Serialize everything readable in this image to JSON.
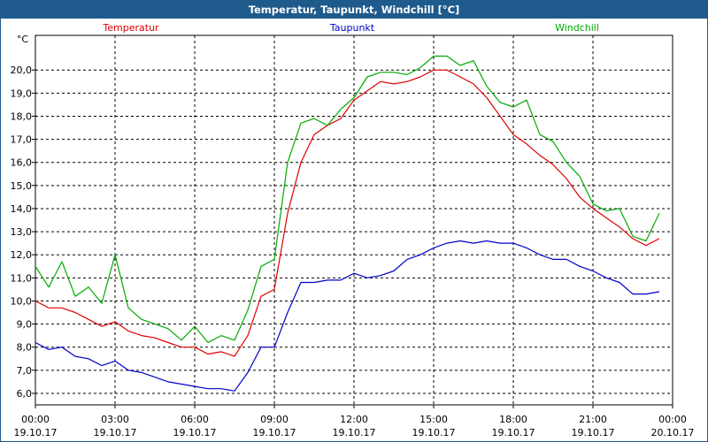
{
  "window": {
    "title": "Temperatur, Taupunkt, Windchill [°C]"
  },
  "chart_data": {
    "type": "line",
    "title": "Temperatur, Taupunkt, Windchill [°C]",
    "ylabel": "°C",
    "xlabel": "",
    "ylim": [
      5.5,
      21.5
    ],
    "xlim": [
      0,
      24
    ],
    "yticks": [
      6,
      7,
      8,
      9,
      10,
      11,
      12,
      13,
      14,
      15,
      16,
      17,
      18,
      19,
      20
    ],
    "ytick_labels": [
      "6,0",
      "7,0",
      "8,0",
      "9,0",
      "10,0",
      "11,0",
      "12,0",
      "13,0",
      "14,0",
      "15,0",
      "16,0",
      "17,0",
      "18,0",
      "19,0",
      "20,0"
    ],
    "xticks": [
      {
        "hour": 0,
        "time": "00:00",
        "date": "19.10.17"
      },
      {
        "hour": 3,
        "time": "03:00",
        "date": "19.10.17"
      },
      {
        "hour": 6,
        "time": "06:00",
        "date": "19.10.17"
      },
      {
        "hour": 9,
        "time": "09:00",
        "date": "19.10.17"
      },
      {
        "hour": 12,
        "time": "12:00",
        "date": "19.10.17"
      },
      {
        "hour": 15,
        "time": "15:00",
        "date": "19.10.17"
      },
      {
        "hour": 18,
        "time": "18:00",
        "date": "19.10.17"
      },
      {
        "hour": 21,
        "time": "21:00",
        "date": "19.10.17"
      },
      {
        "hour": 24,
        "time": "00:00",
        "date": "20.10.17"
      }
    ],
    "grid": true,
    "legend_placement": "top",
    "x": [
      0,
      0.5,
      1,
      1.5,
      2,
      2.5,
      3,
      3.5,
      4,
      4.5,
      5,
      5.5,
      6,
      6.5,
      7,
      7.5,
      8,
      8.5,
      9,
      9.5,
      10,
      10.5,
      11,
      11.5,
      12,
      12.5,
      13,
      13.5,
      14,
      14.5,
      15,
      15.5,
      16,
      16.5,
      17,
      17.5,
      18,
      18.5,
      19,
      19.5,
      20,
      20.5,
      21,
      21.5,
      22,
      22.5,
      23,
      23.5
    ],
    "series": [
      {
        "name": "Temperatur",
        "color": "#e00000",
        "values": [
          10.0,
          9.7,
          9.7,
          9.5,
          9.2,
          8.9,
          9.1,
          8.7,
          8.5,
          8.4,
          8.2,
          8.0,
          8.0,
          7.7,
          7.8,
          7.6,
          8.5,
          10.2,
          10.5,
          13.8,
          16.0,
          17.2,
          17.6,
          17.9,
          18.7,
          19.1,
          19.5,
          19.4,
          19.5,
          19.7,
          20.0,
          20.0,
          19.7,
          19.4,
          18.8,
          18.0,
          17.2,
          16.8,
          16.3,
          15.9,
          15.3,
          14.5,
          14.0,
          13.6,
          13.2,
          12.7,
          12.4,
          12.7
        ]
      },
      {
        "name": "Taupunkt",
        "color": "#0000cc",
        "values": [
          8.2,
          7.9,
          8.0,
          7.6,
          7.5,
          7.2,
          7.4,
          7.0,
          6.9,
          6.7,
          6.5,
          6.4,
          6.3,
          6.2,
          6.2,
          6.1,
          6.9,
          8.0,
          8.0,
          9.5,
          10.8,
          10.8,
          10.9,
          10.9,
          11.2,
          11.0,
          11.1,
          11.3,
          11.8,
          12.0,
          12.3,
          12.5,
          12.6,
          12.5,
          12.6,
          12.5,
          12.5,
          12.3,
          12.0,
          11.8,
          11.8,
          11.5,
          11.3,
          11.0,
          10.8,
          10.3,
          10.3,
          10.4
        ]
      },
      {
        "name": "Windchill",
        "color": "#00aa00",
        "values": [
          11.5,
          10.6,
          11.7,
          10.2,
          10.6,
          9.9,
          12.0,
          9.7,
          9.2,
          9.0,
          8.8,
          8.3,
          8.9,
          8.2,
          8.5,
          8.3,
          9.6,
          11.5,
          11.8,
          16.0,
          17.7,
          17.9,
          17.6,
          18.3,
          18.8,
          19.7,
          19.9,
          19.9,
          19.8,
          20.1,
          20.6,
          20.6,
          20.2,
          20.4,
          19.3,
          18.6,
          18.4,
          18.7,
          17.2,
          16.9,
          16.0,
          15.4,
          14.2,
          13.9,
          14.0,
          12.8,
          12.6,
          13.8
        ]
      }
    ]
  }
}
